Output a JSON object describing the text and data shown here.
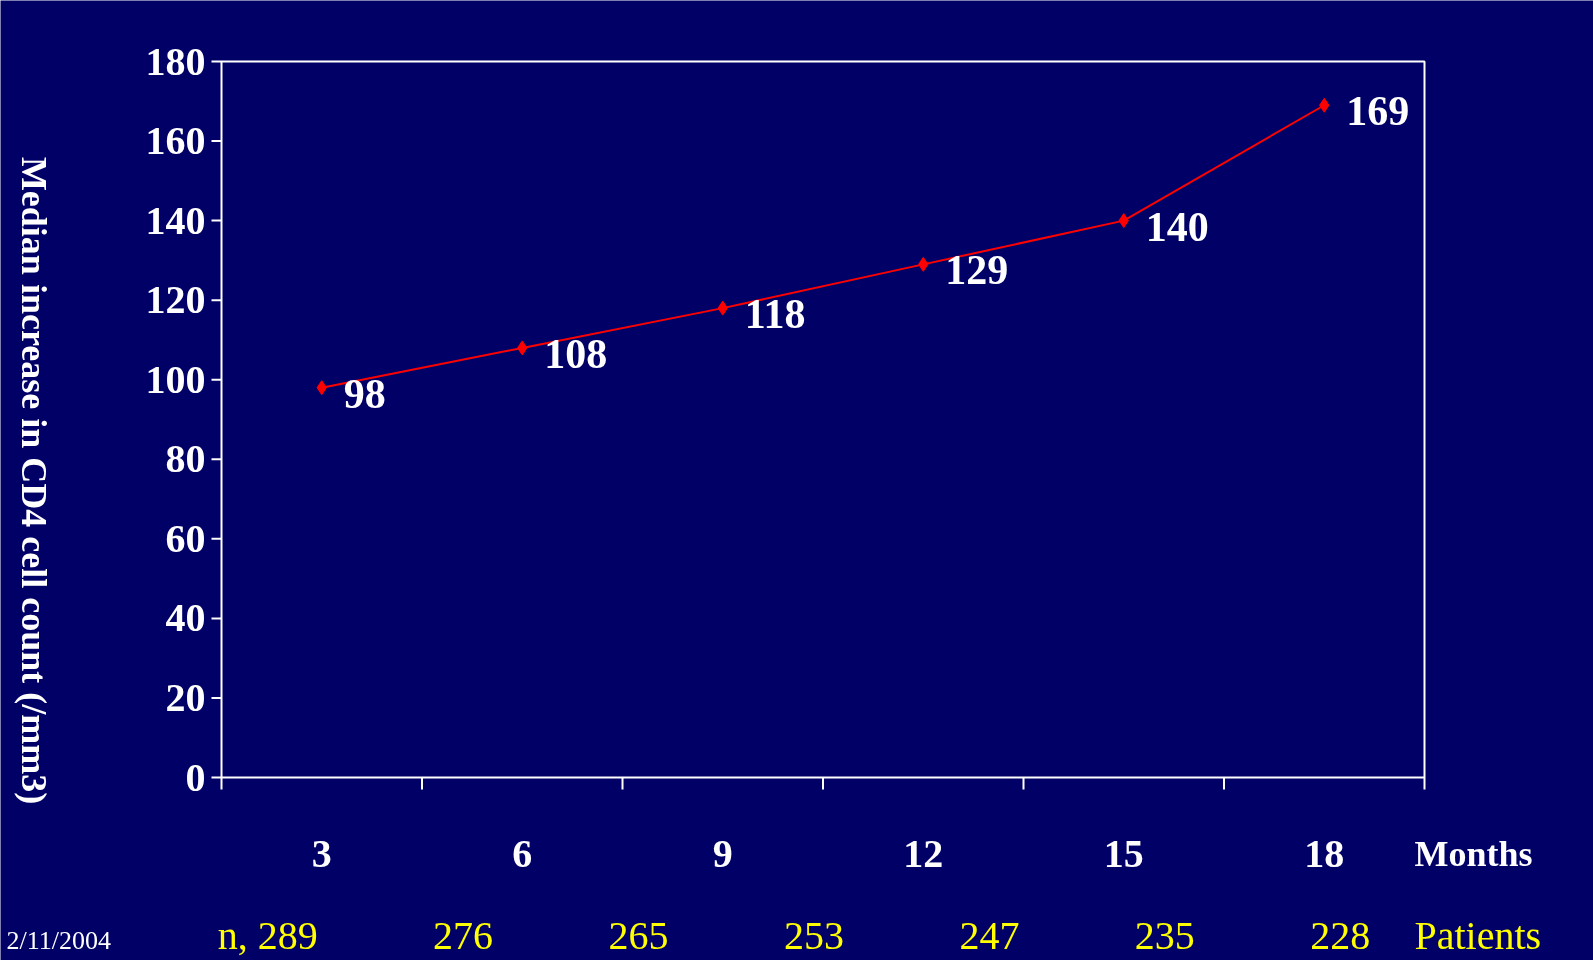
{
  "chart_data": {
    "type": "line",
    "categories": [
      "3",
      "6",
      "9",
      "12",
      "15",
      "18"
    ],
    "series": [
      {
        "color": "#ff0000",
        "values": [
          98,
          108,
          118,
          129,
          140,
          169
        ]
      }
    ],
    "xlabel": "Months",
    "ylabel": "Median increase in CD4 cell count (/mm3)",
    "ylim": [
      0,
      180
    ],
    "yticks": [
      0,
      20,
      40,
      60,
      80,
      100,
      120,
      140,
      160,
      180
    ],
    "data_labels": true,
    "marker": "diamond",
    "line_style": "solid",
    "grid": false,
    "annotations": [
      "2/11/2004",
      "n, 289",
      "276",
      "265",
      "253",
      "247",
      "235",
      "228",
      "Patients"
    ]
  }
}
